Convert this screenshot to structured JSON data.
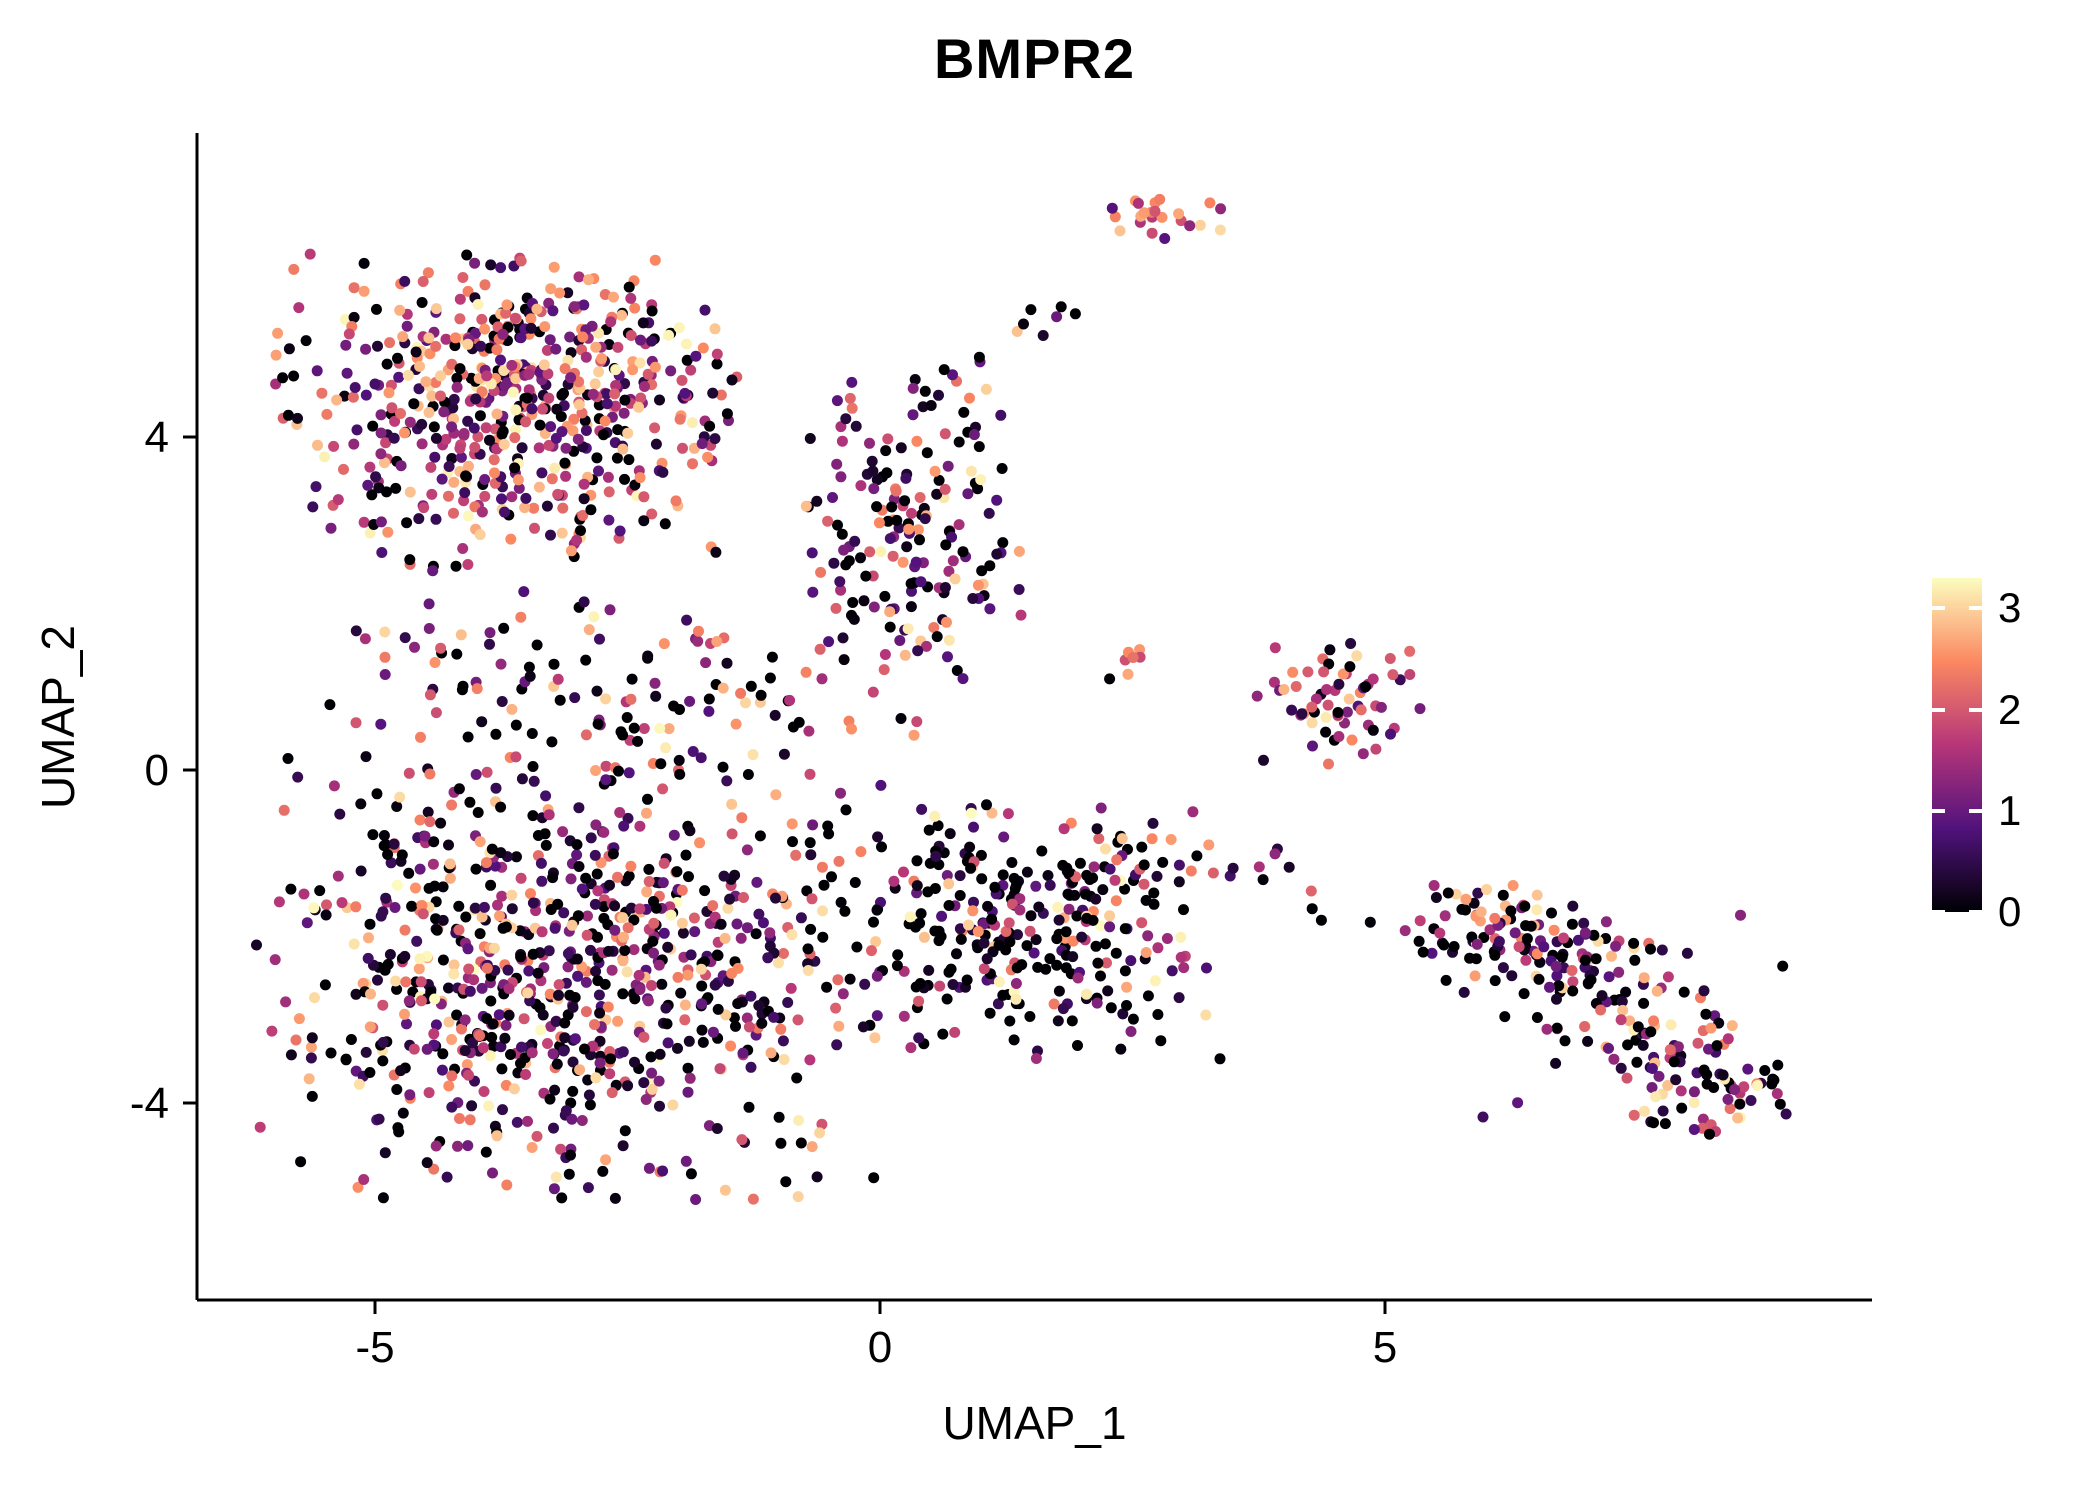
{
  "chart_data": {
    "type": "scatter",
    "title": "BMPR2",
    "xlabel": "UMAP_1",
    "ylabel": "UMAP_2",
    "x_ticks": [
      -5,
      0,
      5
    ],
    "y_ticks": [
      4,
      0,
      -4
    ],
    "x_range": [
      -6.7,
      9.8
    ],
    "y_range": [
      -6.3,
      7.6
    ],
    "grid": "off",
    "legend_position": "right",
    "point_radius_px": 5.5,
    "total_points": 2468,
    "seed": 7,
    "value_max": 3.4,
    "colorbar": {
      "ticks": [
        3,
        2,
        1,
        0
      ],
      "min": 0,
      "max": 3.3,
      "colormap": "magma",
      "stops": [
        {
          "t": 0.0,
          "color": "#000004"
        },
        {
          "t": 0.25,
          "color": "#51127C"
        },
        {
          "t": 0.5,
          "color": "#B63679"
        },
        {
          "t": 0.75,
          "color": "#FB8861"
        },
        {
          "t": 1.0,
          "color": "#FCFDBF"
        }
      ]
    },
    "clusters": [
      {
        "name": "upper-left-blob",
        "n": 480,
        "cx": -3.66,
        "cy": 4.3,
        "sx": 1.14,
        "sy": 0.95,
        "k": 1.25,
        "pz": 0.12
      },
      {
        "name": "upper-hot-core",
        "n": 130,
        "cx": -3.3,
        "cy": 4.9,
        "sx": 0.85,
        "sy": 0.5,
        "k": 0.6,
        "pz": 0.04
      },
      {
        "name": "upper-right-strip",
        "n": 170,
        "cx": 0.3,
        "cy": 2.9,
        "sx": 0.55,
        "sy": 0.95,
        "k": 1.6,
        "pz": 0.18
      },
      {
        "name": "diagonal-trail",
        "n": 13,
        "type": "line",
        "x1": 0.6,
        "y1": 4.5,
        "x2": 1.9,
        "y2": 5.7,
        "jitter": 0.12,
        "k": 1.3,
        "pz": 0.15
      },
      {
        "name": "top-small-cluster",
        "n": 24,
        "cx": 2.8,
        "cy": 6.6,
        "sx": 0.28,
        "sy": 0.22,
        "k": 0.55,
        "pz": 0.08
      },
      {
        "name": "middle-band",
        "n": 150,
        "cx": -2.6,
        "cy": 1.0,
        "sx": 1.5,
        "sy": 0.7,
        "k": 1.5,
        "pz": 0.2
      },
      {
        "name": "lower-left-blob",
        "n": 820,
        "cx": -3.1,
        "cy": -2.5,
        "sx": 1.5,
        "sy": 1.3,
        "k": 1.5,
        "pz": 0.17
      },
      {
        "name": "lower-middle-dark",
        "n": 330,
        "cx": 1.4,
        "cy": -1.9,
        "sx": 1.05,
        "sy": 0.8,
        "k": 2.2,
        "pz": 0.28
      },
      {
        "name": "mid-right-cluster",
        "n": 65,
        "cx": 4.5,
        "cy": 0.85,
        "sx": 0.42,
        "sy": 0.38,
        "k": 1.1,
        "pz": 0.12
      },
      {
        "name": "small-pair",
        "n": 7,
        "cx": 2.55,
        "cy": 1.25,
        "sx": 0.18,
        "sy": 0.12,
        "k": 1.0,
        "pz": 0.1
      },
      {
        "name": "bridge-to-island",
        "n": 14,
        "type": "line",
        "x1": 3.1,
        "y1": -0.9,
        "x2": 5.4,
        "y2": -1.9,
        "jitter": 0.18,
        "k": 1.6,
        "pz": 0.25
      },
      {
        "name": "right-island-west",
        "n": 95,
        "cx": 6.4,
        "cy": -2.0,
        "sx": 0.55,
        "sy": 0.3,
        "rot": -12,
        "k": 1.5,
        "pz": 0.22
      },
      {
        "name": "right-island-center",
        "n": 95,
        "cx": 7.5,
        "cy": -2.9,
        "sx": 0.6,
        "sy": 0.45,
        "rot": -25,
        "k": 1.4,
        "pz": 0.2
      },
      {
        "name": "right-island-tail",
        "n": 55,
        "cx": 8.35,
        "cy": -3.85,
        "sx": 0.42,
        "sy": 0.28,
        "k": 1.2,
        "pz": 0.18
      },
      {
        "name": "island-scatter",
        "n": 20,
        "cx": 7.2,
        "cy": -2.8,
        "sx": 1.0,
        "sy": 0.7,
        "k": 1.5,
        "pz": 0.2
      }
    ]
  }
}
